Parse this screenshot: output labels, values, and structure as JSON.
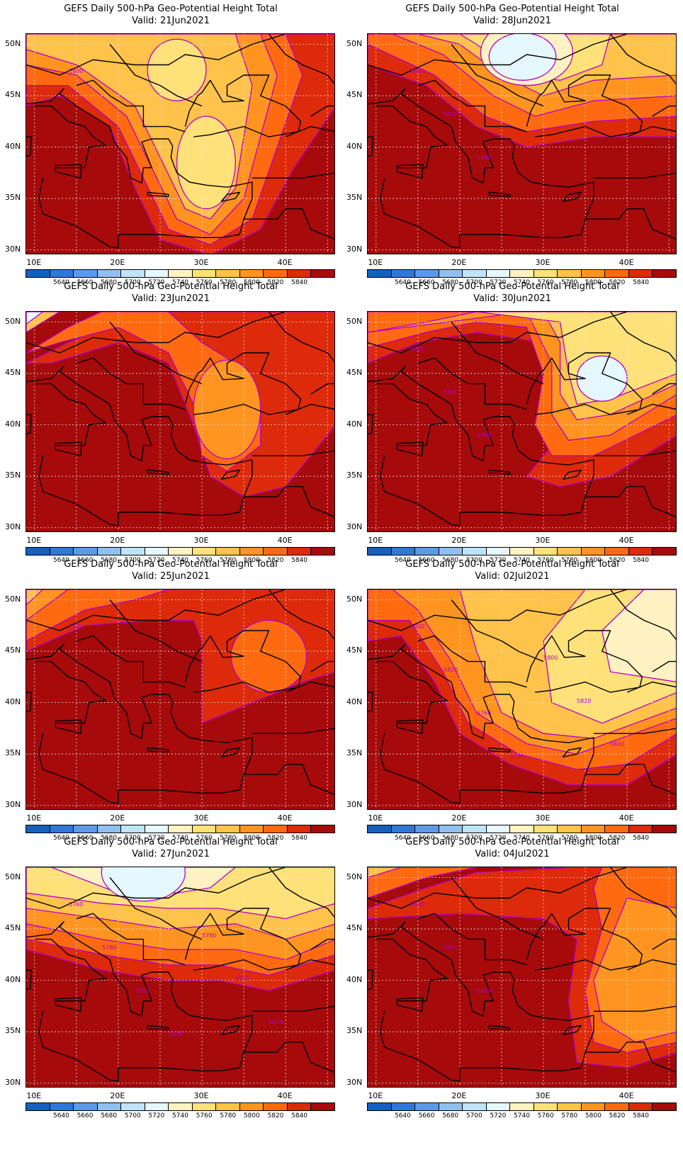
{
  "legend": {
    "colors": [
      "#1560bd",
      "#3078d8",
      "#5c9ae8",
      "#8fc0f0",
      "#bfe4f8",
      "#e6f8ff",
      "#fff2c2",
      "#ffe17a",
      "#ffc24a",
      "#ff9520",
      "#ff6a10",
      "#dd2a0a",
      "#a60a0a"
    ],
    "labels": [
      "5640",
      "5660",
      "5680",
      "5700",
      "5720",
      "5740",
      "5760",
      "5780",
      "5800",
      "5820",
      "5840"
    ]
  },
  "axes": {
    "y_labels": [
      "50N",
      "45N",
      "40N",
      "35N",
      "30N"
    ],
    "x_labels": [
      "10E",
      "20E",
      "30E",
      "40E"
    ],
    "lon_range": [
      9,
      46
    ],
    "lat_range": [
      29.5,
      51
    ]
  },
  "panels": [
    {
      "title": "GEFS Daily 500-hPa Geo-Potential Height Total",
      "valid": "Valid: 21Jun2021",
      "contour_labels": [
        "5800"
      ],
      "pattern": "trough"
    },
    {
      "title": "GEFS Daily 500-hPa Geo-Potential Height Total",
      "valid": "Valid: 28Jun2021",
      "contour_labels": [
        "5800",
        "5820",
        "5840"
      ],
      "pattern": "north-low"
    },
    {
      "title": "GEFS Daily 500-hPa Geo-Potential Height Total",
      "valid": "Valid: 23Jun2021",
      "contour_labels": [],
      "pattern": "east-blob"
    },
    {
      "title": "GEFS Daily 500-hPa Geo-Potential Height Total",
      "valid": "Valid: 30Jun2021",
      "contour_labels": [
        "5800",
        "5840",
        "5760"
      ],
      "pattern": "ne-low"
    },
    {
      "title": "GEFS Daily 500-hPa Geo-Potential Height Total",
      "valid": "Valid: 25Jun2021",
      "contour_labels": [
        "5820"
      ],
      "pattern": "east-small"
    },
    {
      "title": "GEFS Daily 500-hPa Geo-Potential Height Total",
      "valid": "Valid: 02Jul2021",
      "contour_labels": [
        "5800",
        "5820",
        "5760",
        "5780",
        "5800",
        "5820",
        "5840"
      ],
      "pattern": "east-trough"
    },
    {
      "title": "GEFS Daily 500-hPa Geo-Potential Height Total",
      "valid": "Valid: 27Jun2021",
      "contour_labels": [
        "5760",
        "5780",
        "5800",
        "5820",
        "5780",
        "5800",
        "5820"
      ],
      "pattern": "north-bands"
    },
    {
      "title": "GEFS Daily 500-hPa Geo-Potential Height Total",
      "valid": "Valid: 04Jul2021",
      "contour_labels": [
        "5820",
        "5800",
        "5820"
      ],
      "pattern": "ridge-east"
    }
  ]
}
